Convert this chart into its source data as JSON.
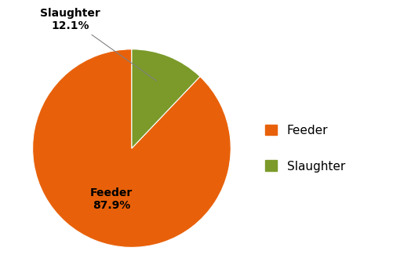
{
  "labels": [
    "Feeder",
    "Slaughter"
  ],
  "values": [
    87.9,
    12.1
  ],
  "colors": [
    "#E8610A",
    "#7B9A2A"
  ],
  "legend_labels": [
    "Feeder",
    "Slaughter"
  ],
  "legend_colors": [
    "#E8610A",
    "#7B9A2A"
  ],
  "startangle": 90,
  "background_color": "#ffffff",
  "label_fontsize": 10,
  "legend_fontsize": 11,
  "feeder_label": "Feeder\n87.9%",
  "slaughter_label": "Slaughter\n12.1%"
}
